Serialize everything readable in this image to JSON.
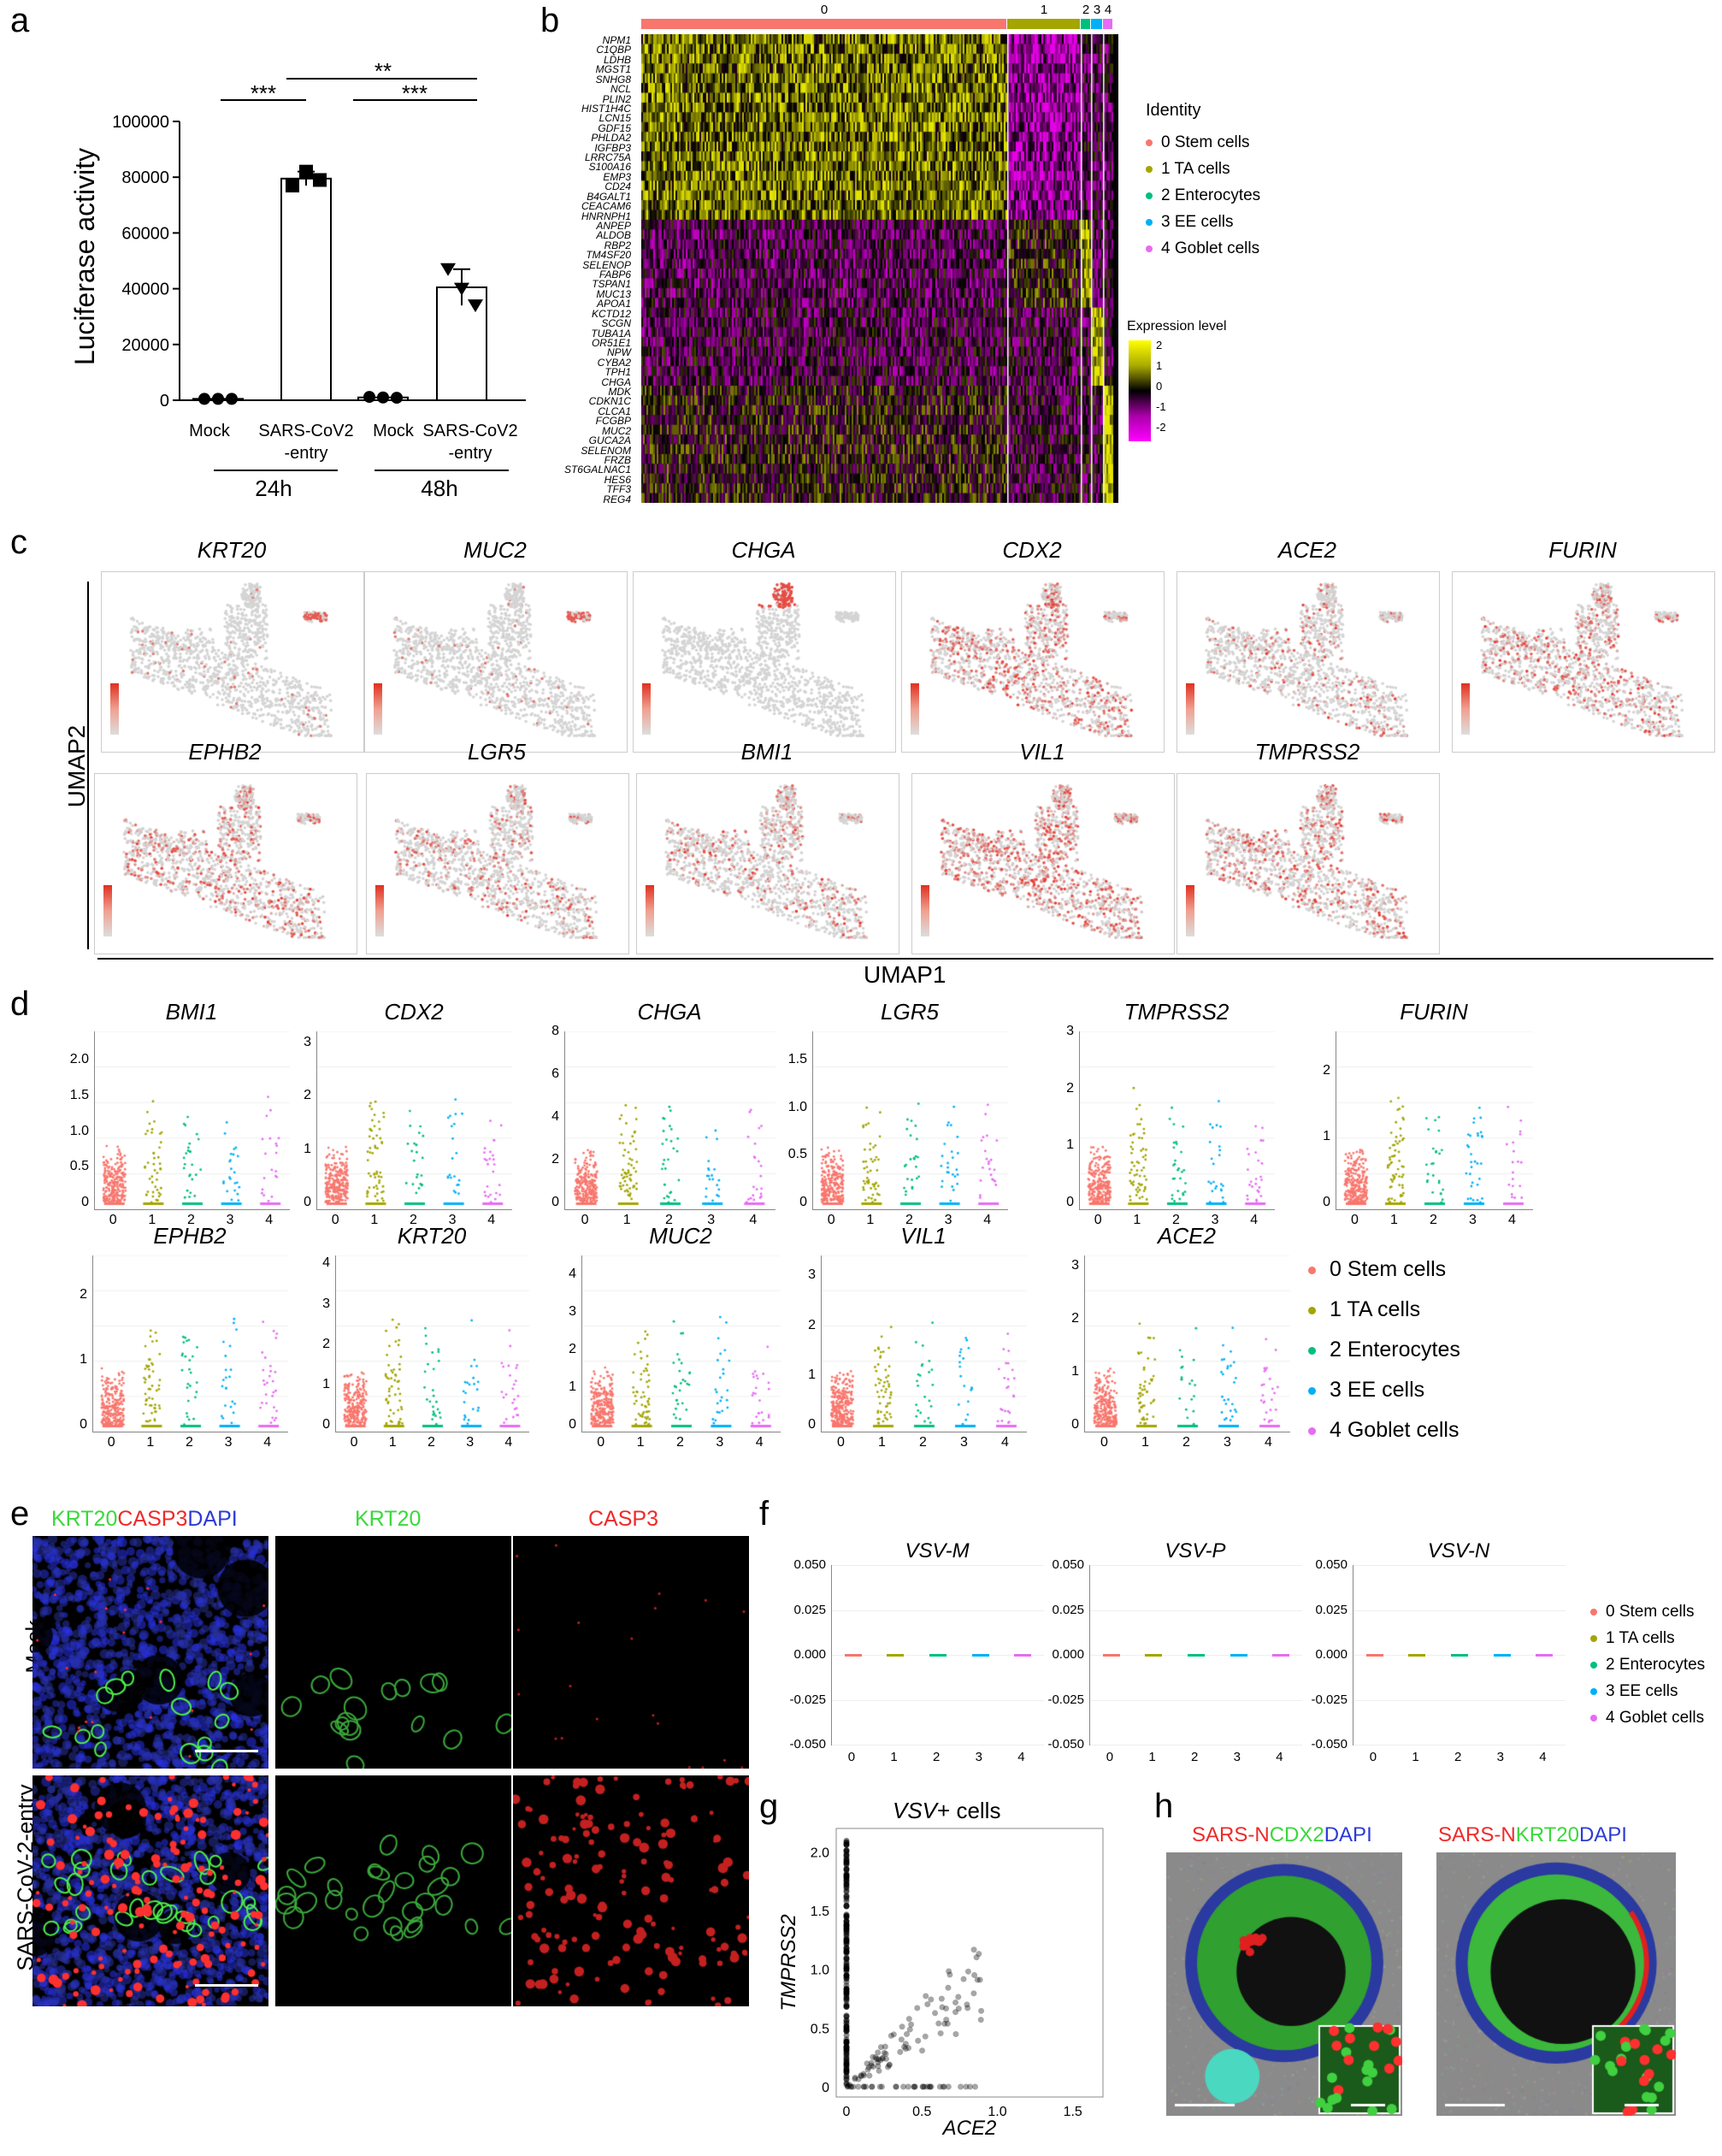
{
  "panels": {
    "a": "a",
    "b": "b",
    "c": "c",
    "d": "d",
    "e": "e",
    "f": "f",
    "g": "g",
    "h": "h"
  },
  "panel_a": {
    "ylabel": "Luciferase activity",
    "yticks": [
      "100000",
      "80000",
      "60000",
      "40000",
      "20000",
      "0"
    ],
    "xcats": [
      "Mock",
      "SARS-CoV2\n-entry",
      "Mock",
      "SARS-CoV2\n-entry"
    ],
    "groups": [
      "24h",
      "48h"
    ],
    "sig": [
      "***",
      "***",
      "**"
    ]
  },
  "chart_data": [
    {
      "type": "bar",
      "title": "",
      "ylabel": "Luciferase activity",
      "ylim": [
        0,
        100000
      ],
      "categories": [
        "Mock 24h",
        "SARS-CoV2-entry 24h",
        "Mock 48h",
        "SARS-CoV2-entry 48h"
      ],
      "values": [
        500,
        79500,
        1000,
        40500
      ],
      "points": [
        [
          500,
          500,
          500
        ],
        [
          77000,
          82000,
          79000
        ],
        [
          1200,
          1000,
          900
        ],
        [
          47000,
          40000,
          34000
        ]
      ]
    },
    {
      "type": "scatter",
      "title": "VSV+ cells",
      "xlabel": "ACE2",
      "ylabel": "TMPRSS2",
      "xlim": [
        0,
        1.7
      ],
      "ylim": [
        0,
        2.2
      ]
    }
  ],
  "panel_b": {
    "clusters": [
      "0",
      "1",
      "2",
      "3",
      "4"
    ],
    "genes": [
      "NPM1",
      "C1QBP",
      "LDHB",
      "MGST1",
      "SNHG8",
      "NCL",
      "PLIN2",
      "HIST1H4C",
      "LCN15",
      "GDF15",
      "PHLDA2",
      "IGFBP3",
      "LRRC75A",
      "S100A16",
      "EMP3",
      "CD24",
      "B4GALT1",
      "CEACAM6",
      "HNRNPH1",
      "ANPEP",
      "ALDOB",
      "RBP2",
      "TM4SF20",
      "SELENOP",
      "FABP6",
      "TSPAN1",
      "MUC13",
      "APOA1",
      "KCTD12",
      "SCGN",
      "TUBA1A",
      "OR51E1",
      "NPW",
      "CYBA2",
      "TPH1",
      "CHGA",
      "MDK",
      "CDKN1C",
      "CLCA1",
      "FCGBP",
      "MUC2",
      "GUCA2A",
      "SELENOM",
      "FRZB",
      "ST6GALNAC1",
      "HES6",
      "TFF3",
      "REG4"
    ],
    "identity_title": "Identity",
    "identity": [
      "0 Stem cells",
      "1 TA cells",
      "2 Enterocytes",
      "3 EE cells",
      "4 Goblet cells"
    ],
    "expr_title": "Expression level",
    "expr_ticks": [
      "2",
      "1",
      "0",
      "-1",
      "-2"
    ]
  },
  "colors": {
    "c0": "#f8766d",
    "c1": "#a3a500",
    "c2": "#00bf7d",
    "c3": "#00b0f6",
    "c4": "#e76bf3",
    "green": "#39d93a",
    "red": "#ee2a2a",
    "blue": "#2b3bd6"
  },
  "panel_c": {
    "genes_row1": [
      "KRT20",
      "MUC2",
      "CHGA",
      "CDX2",
      "ACE2",
      "FURIN"
    ],
    "genes_row2": [
      "EPHB2",
      "LGR5",
      "BMI1",
      "VIL1",
      "TMPRSS2"
    ],
    "ylabel": "UMAP2",
    "xlabel": "UMAP1"
  },
  "panel_d": {
    "genes_row1": [
      "BMI1",
      "CDX2",
      "CHGA",
      "LGR5",
      "TMPRSS2",
      "FURIN"
    ],
    "genes_row2": [
      "EPHB2",
      "KRT20",
      "MUC2",
      "VIL1",
      "ACE2"
    ],
    "xticks": [
      "0",
      "1",
      "2",
      "3",
      "4"
    ],
    "legend": [
      "0 Stem cells",
      "1 TA cells",
      "2 Enterocytes",
      "3 EE cells",
      "4 Goblet cells"
    ]
  },
  "panel_e": {
    "col_titles": [
      "KRT20",
      "CASP3",
      "DAPI",
      "KRT20",
      "CASP3"
    ],
    "rows": [
      "Mock",
      "SARS-CoV-2-entry"
    ]
  },
  "panel_f": {
    "genes": [
      "VSV-M",
      "VSV-P",
      "VSV-N"
    ],
    "yticks": [
      "0.050",
      "0.025",
      "0.000",
      "-0.025",
      "-0.050"
    ],
    "xticks": [
      "0",
      "1",
      "2",
      "3",
      "4"
    ],
    "legend": [
      "0 Stem cells",
      "1 TA cells",
      "2 Enterocytes",
      "3 EE cells",
      "4 Goblet cells"
    ]
  },
  "panel_g": {
    "title_italic": "VSV",
    "title_rest": "+ cells",
    "xlabel": "ACE2",
    "ylabel": "TMPRSS2",
    "yticks": [
      "2.0",
      "1.5",
      "1.0",
      "0.5",
      "0"
    ],
    "xticks": [
      "0",
      "0.5",
      "1.0",
      "1.5"
    ]
  },
  "panel_h": {
    "left": [
      "SARS-N",
      "CDX2",
      "DAPI"
    ],
    "right": [
      "SARS-N",
      "KRT20",
      "DAPI"
    ]
  }
}
